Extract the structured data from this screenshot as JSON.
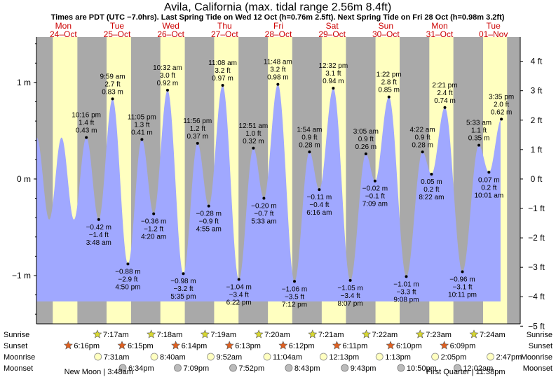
{
  "title": "Avila, California (max. tidal range 2.56m 8.4ft)",
  "subtitle": "Times are PDT (UTC −7.0hrs). Last Spring Tide on Wed 12 Oct (h=0.76m 2.5ft). Next Spring Tide on Fri 28 Oct (h=0.98m 3.2ft)",
  "chart_data": {
    "type": "area",
    "title": "Avila, California (max. tidal range 2.56m 8.4ft)",
    "ylim": [
      -1.5,
      1.47
    ],
    "left_axis": {
      "unit": "m",
      "ticks": [
        {
          "v": 1,
          "label": "1 m"
        },
        {
          "v": 0,
          "label": "0 m"
        },
        {
          "v": -1,
          "label": "−1 m"
        }
      ]
    },
    "right_axis": {
      "unit": "ft",
      "ticks": [
        {
          "v": 4,
          "label": "4 ft"
        },
        {
          "v": 3,
          "label": "3 ft"
        },
        {
          "v": 2,
          "label": "2 ft"
        },
        {
          "v": 1,
          "label": "1 ft"
        },
        {
          "v": 0,
          "label": "0 ft"
        },
        {
          "v": -1,
          "label": "−1 ft"
        },
        {
          "v": -2,
          "label": "−2 ft"
        },
        {
          "v": -3,
          "label": "−3 ft"
        },
        {
          "v": -4,
          "label": "−4 ft"
        },
        {
          "v": -5,
          "label": "−5 ft"
        }
      ]
    },
    "x_range_hours": [
      0,
      216
    ],
    "days": [
      {
        "dow": "Mon",
        "date": "24–Oct"
      },
      {
        "dow": "Tue",
        "date": "25–Oct"
      },
      {
        "dow": "Wed",
        "date": "26–Oct"
      },
      {
        "dow": "Thu",
        "date": "27–Oct"
      },
      {
        "dow": "Fri",
        "date": "28–Oct"
      },
      {
        "dow": "Sat",
        "date": "29–Oct"
      },
      {
        "dow": "Sun",
        "date": "30–Oct"
      },
      {
        "dow": "Mon",
        "date": "31–Oct"
      },
      {
        "dow": "Tue",
        "date": "01–Nov"
      }
    ],
    "nights": [
      {
        "start": 0,
        "end": 7.28
      },
      {
        "start": 18.27,
        "end": 31.3
      },
      {
        "start": 42.25,
        "end": 55.32
      },
      {
        "start": 66.23,
        "end": 79.33
      },
      {
        "start": 90.22,
        "end": 103.35
      },
      {
        "start": 114.2,
        "end": 127.37
      },
      {
        "start": 138.18,
        "end": 151.38
      },
      {
        "start": 162.17,
        "end": 175.4
      },
      {
        "start": 186.15,
        "end": 199.4
      },
      {
        "start": 210.13,
        "end": 216
      }
    ],
    "plot_start_hour": 0,
    "plot_end_hour": 207.2,
    "tides": [
      {
        "hour": 22.27,
        "m": 0.43,
        "time": "10:16 pm",
        "ft": "1.4 ft",
        "height": "0.43 m",
        "type": "high"
      },
      {
        "hour": 27.8,
        "m": -0.42,
        "time": "3:48 am",
        "ft": "−1.4 ft",
        "height": "−0.42 m",
        "type": "low"
      },
      {
        "hour": 33.98,
        "m": 0.83,
        "time": "9:59 am",
        "ft": "2.7 ft",
        "height": "0.83 m",
        "type": "high"
      },
      {
        "hour": 40.83,
        "m": -0.88,
        "time": "4:50 pm",
        "ft": "−2.9 ft",
        "height": "−0.88 m",
        "type": "low"
      },
      {
        "hour": 47.08,
        "m": 0.41,
        "time": "11:05 pm",
        "ft": "1.3 ft",
        "height": "0.41 m",
        "type": "high"
      },
      {
        "hour": 52.33,
        "m": -0.36,
        "time": "4:20 am",
        "ft": "−1.2 ft",
        "height": "−0.36 m",
        "type": "low"
      },
      {
        "hour": 58.53,
        "m": 0.92,
        "time": "10:32 am",
        "ft": "3.0 ft",
        "height": "0.92 m",
        "type": "high"
      },
      {
        "hour": 65.58,
        "m": -0.98,
        "time": "5:35 pm",
        "ft": "−3.2 ft",
        "height": "−0.98 m",
        "type": "low"
      },
      {
        "hour": 71.93,
        "m": 0.37,
        "time": "11:56 pm",
        "ft": "1.2 ft",
        "height": "0.37 m",
        "type": "high"
      },
      {
        "hour": 76.92,
        "m": -0.28,
        "time": "4:55 am",
        "ft": "−0.9 ft",
        "height": "−0.28 m",
        "type": "low"
      },
      {
        "hour": 83.13,
        "m": 0.97,
        "time": "11:08 am",
        "ft": "3.2 ft",
        "height": "0.97 m",
        "type": "high"
      },
      {
        "hour": 90.37,
        "m": -1.04,
        "time": "6:22 pm",
        "ft": "−3.4 ft",
        "height": "−1.04 m",
        "type": "low"
      },
      {
        "hour": 96.85,
        "m": 0.32,
        "time": "12:51 am",
        "ft": "1.0 ft",
        "height": "0.32 m",
        "type": "high"
      },
      {
        "hour": 101.55,
        "m": -0.2,
        "time": "5:33 am",
        "ft": "−0.7 ft",
        "height": "−0.20 m",
        "type": "low"
      },
      {
        "hour": 107.8,
        "m": 0.98,
        "time": "11:48 am",
        "ft": "3.2 ft",
        "height": "0.98 m",
        "type": "high"
      },
      {
        "hour": 115.2,
        "m": -1.06,
        "time": "7:12 pm",
        "ft": "−3.5 ft",
        "height": "−1.06 m",
        "type": "low"
      },
      {
        "hour": 121.9,
        "m": 0.28,
        "time": "1:54 am",
        "ft": "0.9 ft",
        "height": "0.28 m",
        "type": "high"
      },
      {
        "hour": 126.27,
        "m": -0.11,
        "time": "6:16 am",
        "ft": "−0.4 ft",
        "height": "−0.11 m",
        "type": "low"
      },
      {
        "hour": 132.53,
        "m": 0.94,
        "time": "12:32 pm",
        "ft": "3.1 ft",
        "height": "0.94 m",
        "type": "high"
      },
      {
        "hour": 140.12,
        "m": -1.05,
        "time": "8:07 pm",
        "ft": "−3.4 ft",
        "height": "−1.05 m",
        "type": "low"
      },
      {
        "hour": 147.08,
        "m": 0.26,
        "time": "3:05 am",
        "ft": "0.9 ft",
        "height": "0.26 m",
        "type": "high"
      },
      {
        "hour": 151.15,
        "m": -0.02,
        "time": "7:09 am",
        "ft": "−0.1 ft",
        "height": "−0.02 m",
        "type": "low"
      },
      {
        "hour": 157.37,
        "m": 0.85,
        "time": "1:22 pm",
        "ft": "2.8 ft",
        "height": "0.85 m",
        "type": "high"
      },
      {
        "hour": 165.13,
        "m": -1.01,
        "time": "9:08 pm",
        "ft": "−3.3 ft",
        "height": "−1.01 m",
        "type": "low"
      },
      {
        "hour": 172.37,
        "m": 0.28,
        "time": "4:22 am",
        "ft": "0.9 ft",
        "height": "0.28 m",
        "type": "high"
      },
      {
        "hour": 176.37,
        "m": 0.05,
        "time": "8:22 am",
        "ft": "0.2 ft",
        "height": "0.05 m",
        "type": "low"
      },
      {
        "hour": 182.35,
        "m": 0.74,
        "time": "2:21 pm",
        "ft": "2.4 ft",
        "height": "0.74 m",
        "type": "high"
      },
      {
        "hour": 190.18,
        "m": -0.96,
        "time": "10:11 pm",
        "ft": "−3.1 ft",
        "height": "−0.96 m",
        "type": "low"
      },
      {
        "hour": 197.55,
        "m": 0.35,
        "time": "5:33 am",
        "ft": "1.1 ft",
        "height": "0.35 m",
        "type": "high"
      },
      {
        "hour": 202.02,
        "m": 0.07,
        "time": "10:01 am",
        "ft": "0.2 ft",
        "height": "0.07 m",
        "type": "low"
      },
      {
        "hour": 207.58,
        "m": 0.62,
        "time": "3:35 pm",
        "ft": "2.0 ft",
        "height": "0.62 m",
        "type": "high"
      }
    ],
    "rows": {
      "labels": [
        "Sunrise",
        "Sunset",
        "Moonrise",
        "Moonset"
      ],
      "sunrise": [
        {
          "hour": 31.28,
          "time": "7:17am"
        },
        {
          "hour": 55.3,
          "time": "7:18am"
        },
        {
          "hour": 79.32,
          "time": "7:19am"
        },
        {
          "hour": 103.33,
          "time": "7:20am"
        },
        {
          "hour": 127.35,
          "time": "7:21am"
        },
        {
          "hour": 151.37,
          "time": "7:22am"
        },
        {
          "hour": 175.38,
          "time": "7:23am"
        },
        {
          "hour": 199.4,
          "time": "7:24am"
        }
      ],
      "sunset": [
        {
          "hour": 18.27,
          "time": "6:16pm"
        },
        {
          "hour": 42.25,
          "time": "6:15pm"
        },
        {
          "hour": 66.23,
          "time": "6:14pm"
        },
        {
          "hour": 90.22,
          "time": "6:13pm"
        },
        {
          "hour": 114.2,
          "time": "6:12pm"
        },
        {
          "hour": 138.18,
          "time": "6:11pm"
        },
        {
          "hour": 162.17,
          "time": "6:10pm"
        },
        {
          "hour": 186.15,
          "time": "6:09pm"
        }
      ],
      "moonrise": [
        {
          "hour": 31.52,
          "time": "7:31am"
        },
        {
          "hour": 56.67,
          "time": "8:40am"
        },
        {
          "hour": 81.87,
          "time": "9:52am"
        },
        {
          "hour": 107.07,
          "time": "11:04am"
        },
        {
          "hour": 132.22,
          "time": "12:13pm"
        },
        {
          "hour": 157.22,
          "time": "1:13pm"
        },
        {
          "hour": 182.08,
          "time": "2:05pm"
        },
        {
          "hour": 206.78,
          "time": "2:47pm"
        }
      ],
      "moonset": [
        {
          "hour": 42.57,
          "time": "6:34pm"
        },
        {
          "hour": 67.15,
          "time": "7:09pm"
        },
        {
          "hour": 91.87,
          "time": "7:52pm"
        },
        {
          "hour": 116.72,
          "time": "8:43pm"
        },
        {
          "hour": 141.72,
          "time": "9:43pm"
        },
        {
          "hour": 166.83,
          "time": "10:50pm"
        },
        {
          "hour": 192.03,
          "time": "12:02am"
        }
      ]
    },
    "moon_phases": [
      {
        "label": "New Moon | 3:48am",
        "hour": 27.8
      },
      {
        "label": "First Quarter | 11:38pm",
        "hour": 191.63
      }
    ],
    "colors": {
      "day": "#ffffc0",
      "night": "#a9a9a9",
      "water": "#a0a8ff",
      "day_label": "#cc0000",
      "sun": "#d8d830",
      "sunset": "#e06020",
      "moonrise": "#ffffc0",
      "moonset": "#bbbbbb"
    }
  }
}
